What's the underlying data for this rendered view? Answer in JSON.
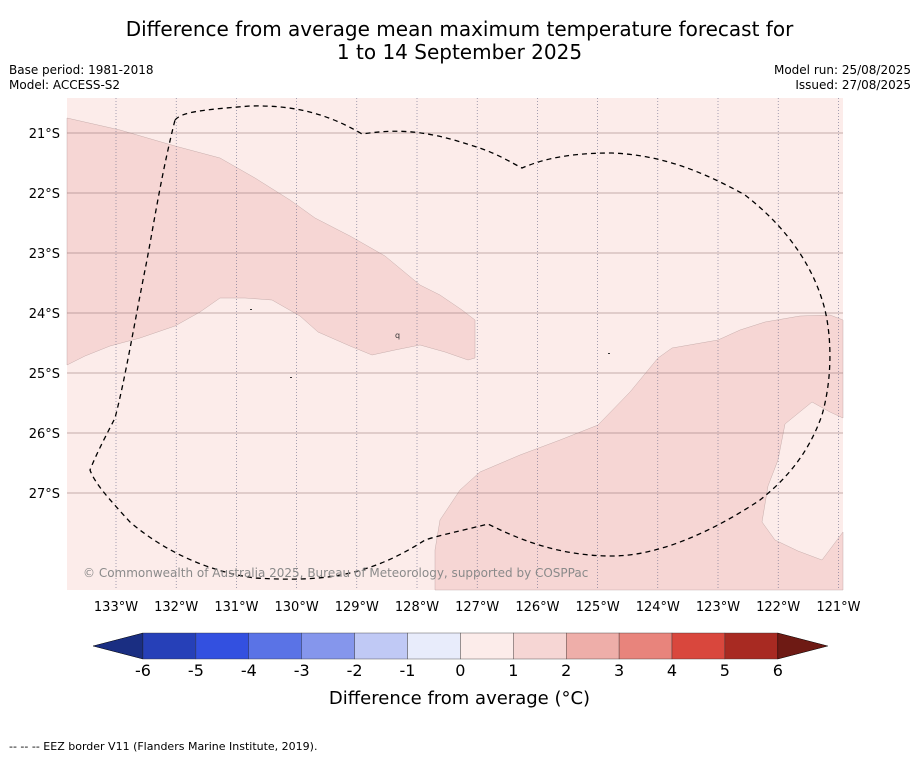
{
  "title_line1": "Difference from average mean maximum temperature forecast for",
  "title_line2": "1 to 14 September 2025",
  "base_period": "Base period: 1981-2018",
  "model": "Model: ACCESS-S2",
  "model_run": "Model run: 25/08/2025",
  "issued": "Issued: 27/08/2025",
  "copyright": "© Commonwealth of Australia 2025, Bureau of Meteorology, supported by COSPPac",
  "lon_labels": [
    "133°W",
    "132°W",
    "131°W",
    "130°W",
    "129°W",
    "128°W",
    "127°W",
    "126°W",
    "125°W",
    "124°W",
    "123°W",
    "122°W",
    "121°W"
  ],
  "lat_labels": [
    "21°S",
    "22°S",
    "23°S",
    "24°S",
    "25°S",
    "26°S",
    "27°S"
  ],
  "colorbar": {
    "label": "Difference from average (°C)",
    "ticks": [
      "-6",
      "-5",
      "-4",
      "-3",
      "-2",
      "-1",
      "0",
      "1",
      "2",
      "3",
      "4",
      "5",
      "6"
    ],
    "colors": [
      "#1a2e82",
      "#2640b8",
      "#3350e0",
      "#5a73e6",
      "#8596ec",
      "#c0c9f5",
      "#e8ecfb",
      "#fcecea",
      "#f6d6d4",
      "#eeaea9",
      "#e8847c",
      "#d9473d",
      "#a82a22",
      "#6e1a14"
    ]
  },
  "map_colors": {
    "band_0_1": "#fcecea",
    "band_1_2": "#f6d6d4",
    "eez_line": "#000000"
  },
  "footnote": "-- -- -- EEZ border V11 (Flanders Marine Institute, 2019)."
}
